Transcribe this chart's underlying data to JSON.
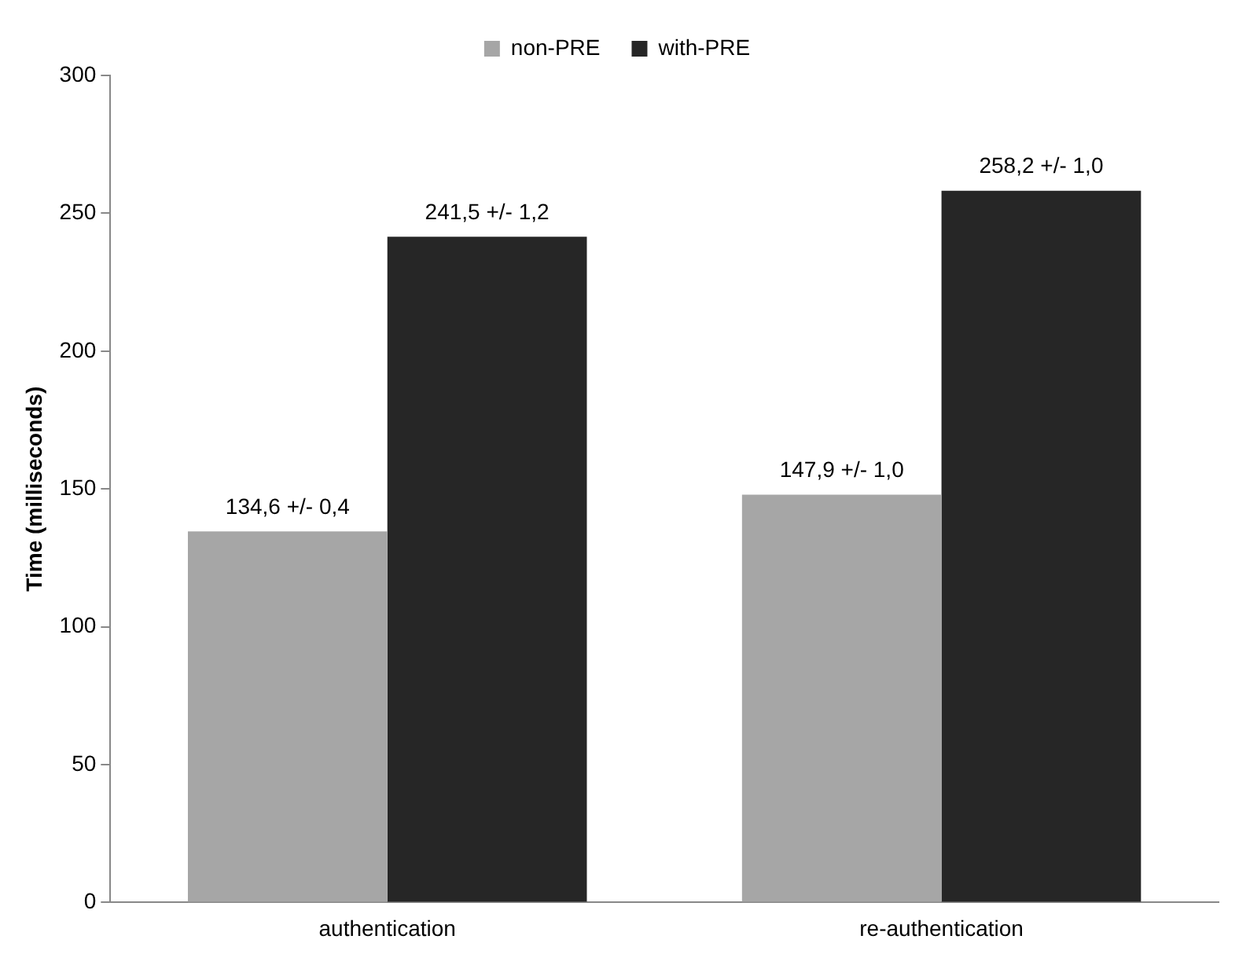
{
  "chart_data": {
    "type": "bar",
    "categories": [
      "authentication",
      "re-authentication"
    ],
    "series": [
      {
        "name": "non-PRE",
        "color": "#a6a6a6",
        "values": [
          134.6,
          147.9
        ],
        "value_labels": [
          "134,6 +/- 0,4",
          "147,9 +/- 1,0"
        ]
      },
      {
        "name": "with-PRE",
        "color": "#262626",
        "values": [
          241.5,
          258.2
        ],
        "value_labels": [
          "241,5 +/- 1,2",
          "258,2 +/- 1,0"
        ]
      }
    ],
    "ylabel": "Time (milliseconds)",
    "ylim": [
      0,
      300
    ],
    "yticks": [
      0,
      50,
      100,
      150,
      200,
      250,
      300
    ],
    "legend": "top"
  }
}
